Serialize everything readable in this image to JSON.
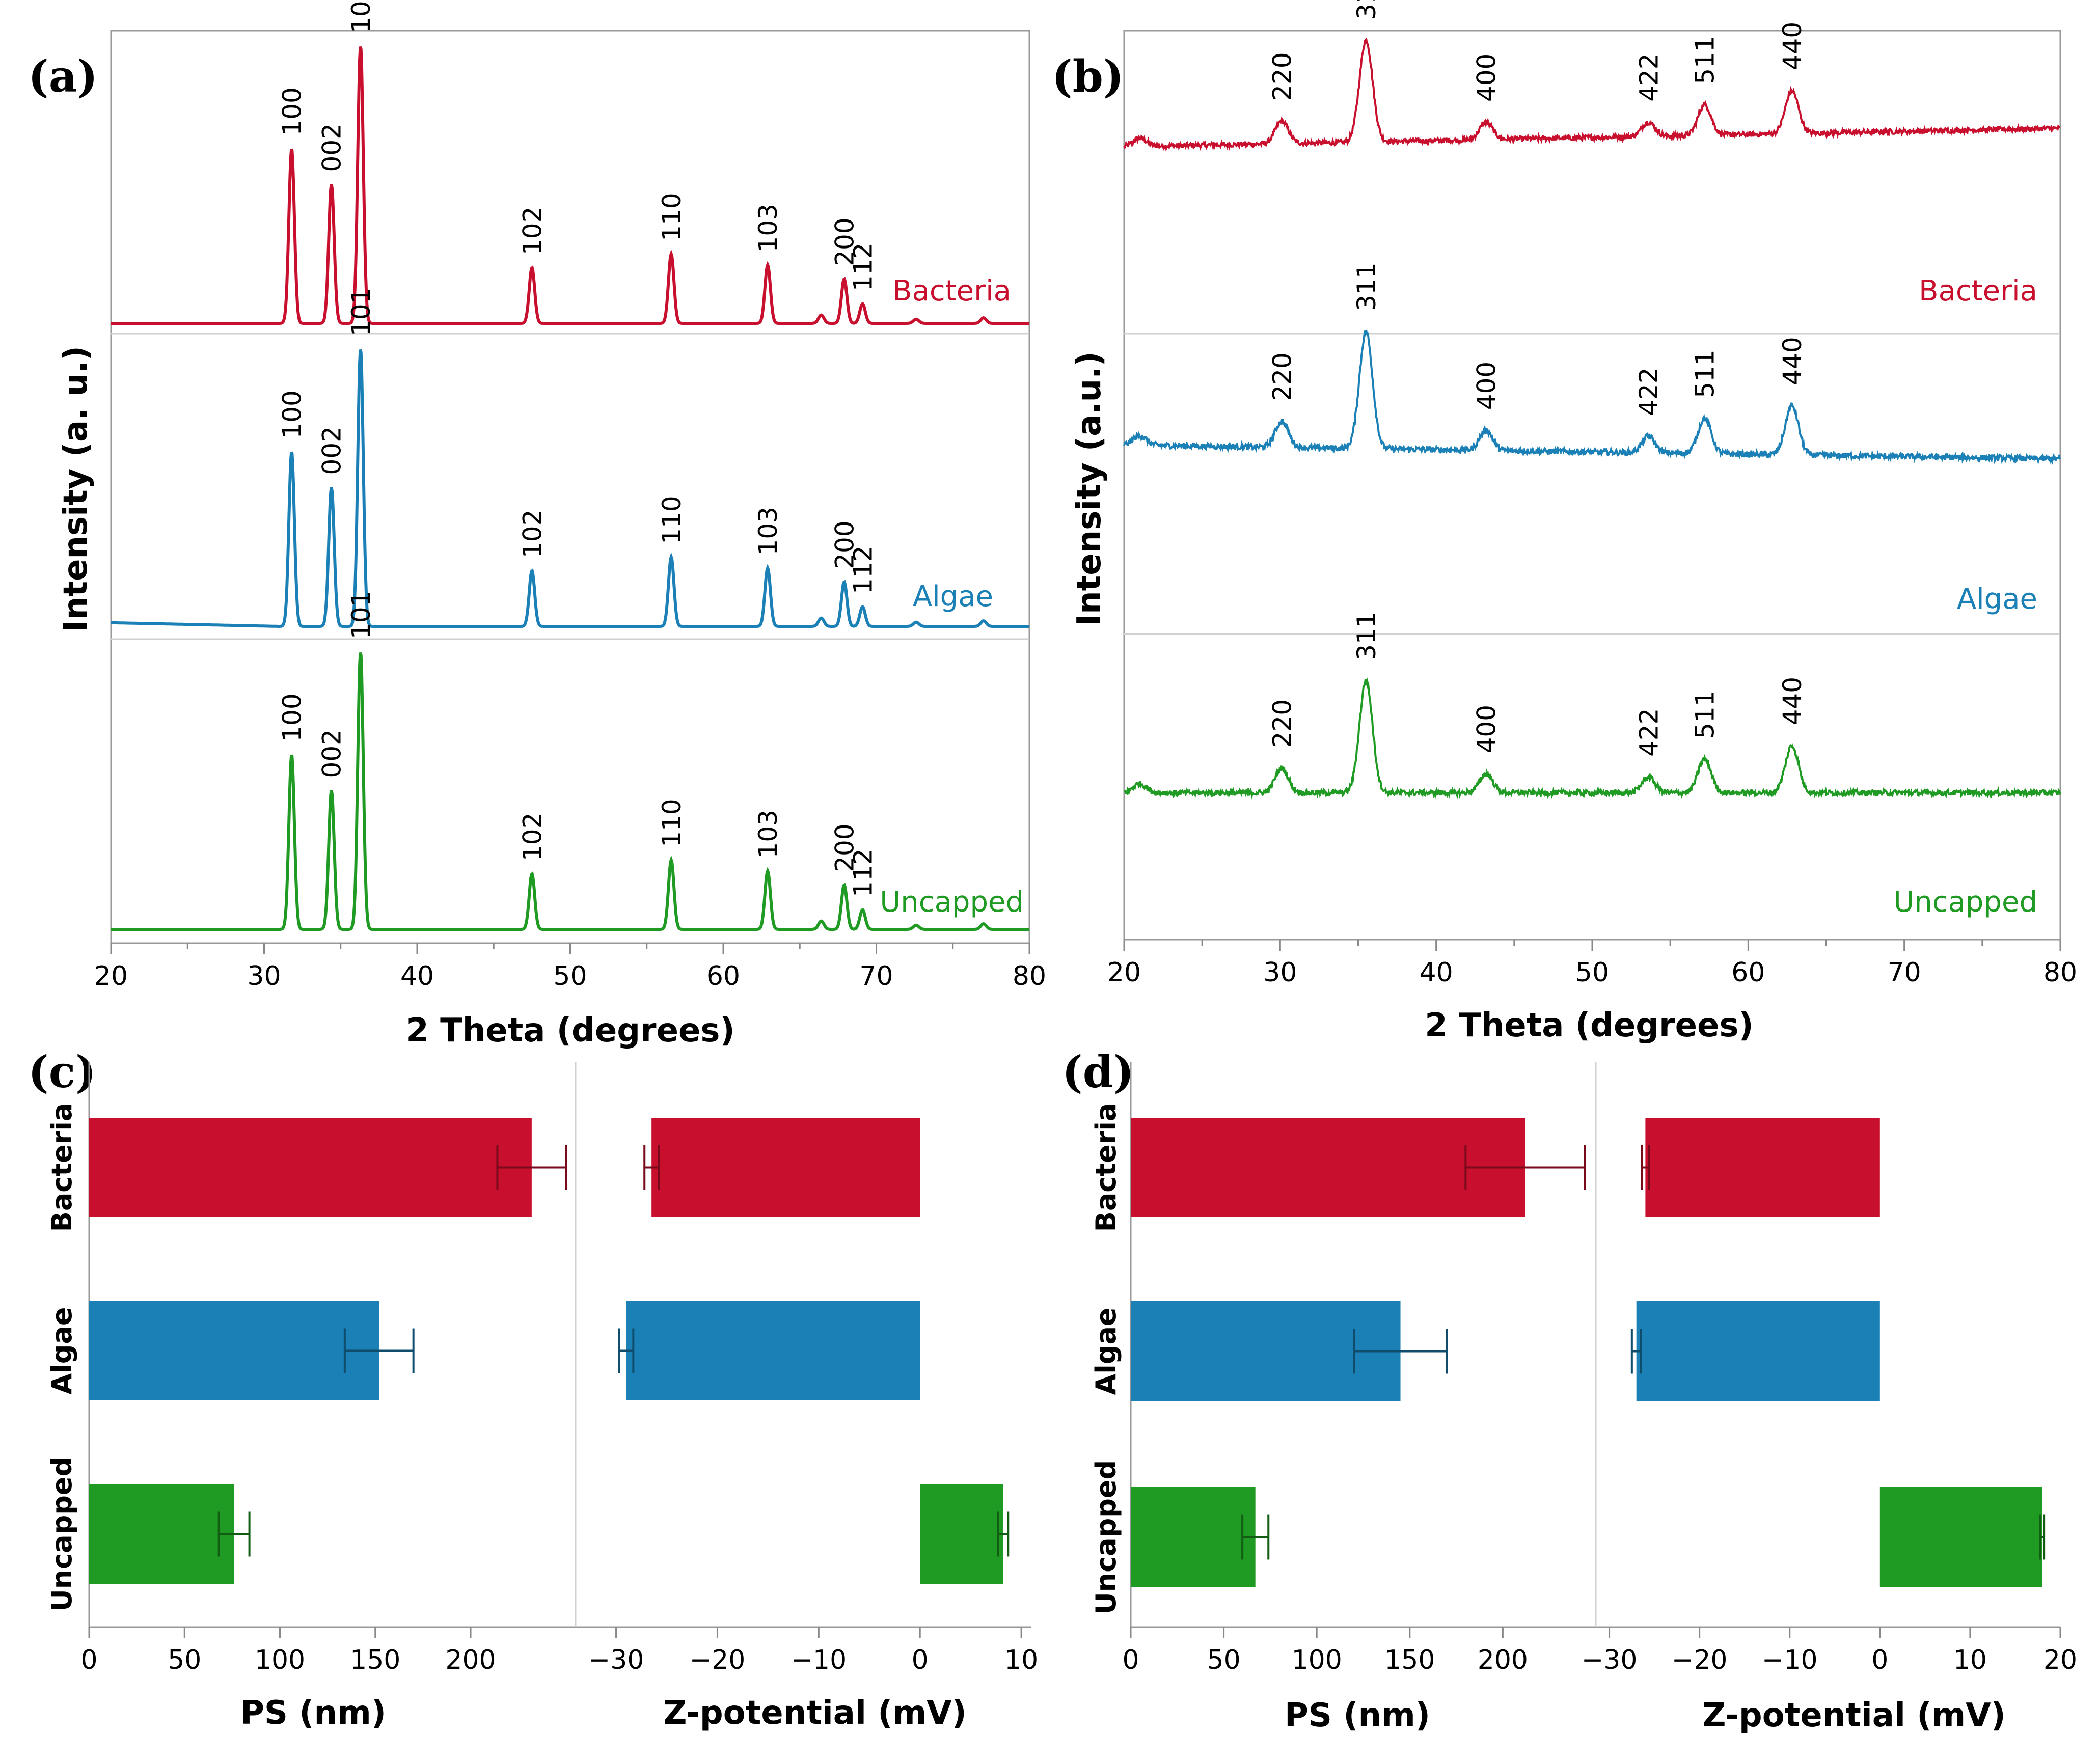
{
  "colors": {
    "bacteria": "#c8102e",
    "algae": "#1a80b6",
    "uncapped": "#1f9a22"
  },
  "chart_data": [
    {
      "panel": "(a)",
      "type": "line",
      "xlabel": "2 Theta (degrees)",
      "ylabel": "Intensity (a. u.)",
      "xlim": [
        20,
        80
      ],
      "xticks": [
        "20",
        "30",
        "40",
        "50",
        "60",
        "70",
        "80"
      ],
      "peaks": [
        {
          "x": 31.8,
          "label": "100",
          "h": 0.63
        },
        {
          "x": 34.4,
          "label": "002",
          "h": 0.5
        },
        {
          "x": 36.3,
          "label": "101",
          "h": 1.0
        },
        {
          "x": 47.5,
          "label": "102",
          "h": 0.2
        },
        {
          "x": 56.6,
          "label": "110",
          "h": 0.25
        },
        {
          "x": 62.9,
          "label": "103",
          "h": 0.21
        },
        {
          "x": 66.4,
          "label": "",
          "h": 0.03
        },
        {
          "x": 67.9,
          "label": "200",
          "h": 0.16
        },
        {
          "x": 69.1,
          "label": "112",
          "h": 0.07
        },
        {
          "x": 72.6,
          "label": "",
          "h": 0.015
        },
        {
          "x": 77.0,
          "label": "",
          "h": 0.02
        }
      ],
      "series": [
        {
          "name": "Bacteria",
          "color_key": "bacteria"
        },
        {
          "name": "Algae",
          "color_key": "algae"
        },
        {
          "name": "Uncapped",
          "color_key": "uncapped"
        }
      ]
    },
    {
      "panel": "(b)",
      "type": "line",
      "xlabel": "2 Theta (degrees)",
      "ylabel": "Intensity (a.u.)",
      "xlim": [
        20,
        80
      ],
      "xticks": [
        "20",
        "30",
        "40",
        "50",
        "60",
        "70",
        "80"
      ],
      "peaks": [
        {
          "x": 21.0,
          "label": "",
          "h": 0.08
        },
        {
          "x": 30.1,
          "label": "220",
          "h": 0.22
        },
        {
          "x": 35.5,
          "label": "311",
          "h": 1.0
        },
        {
          "x": 43.2,
          "label": "400",
          "h": 0.17
        },
        {
          "x": 53.6,
          "label": "422",
          "h": 0.14
        },
        {
          "x": 57.2,
          "label": "511",
          "h": 0.3
        },
        {
          "x": 62.8,
          "label": "440",
          "h": 0.42
        }
      ],
      "series": [
        {
          "name": "Bacteria",
          "color_key": "bacteria"
        },
        {
          "name": "Algae",
          "color_key": "algae"
        },
        {
          "name": "Uncapped",
          "color_key": "uncapped"
        }
      ]
    },
    {
      "panel": "(c)",
      "type": "bar",
      "categories": [
        "Bacteria",
        "Algae",
        "Uncapped"
      ],
      "ps": {
        "xlabel": "PS (nm)",
        "xlim": [
          0,
          255
        ],
        "xticks": [
          0,
          50,
          100,
          150,
          200
        ],
        "values": [
          232,
          152,
          76
        ],
        "errors": [
          18,
          18,
          8
        ]
      },
      "zeta": {
        "xlabel": "Z-potential (mV)",
        "xlim": [
          -34,
          11
        ],
        "xticks": [
          -30,
          -20,
          -10,
          0,
          10
        ],
        "tick_labels": [
          "−30",
          "−20",
          "−10",
          "0",
          "10"
        ],
        "values": [
          -26.5,
          -29,
          8.2
        ],
        "errors": [
          0.7,
          0.7,
          0.5
        ]
      }
    },
    {
      "panel": "(d)",
      "type": "bar",
      "categories": [
        "Bacteria",
        "Algae",
        "Uncapped"
      ],
      "ps": {
        "xlabel": "PS (nm)",
        "xlim": [
          0,
          250
        ],
        "xticks": [
          0,
          50,
          100,
          150,
          200
        ],
        "values": [
          212,
          145,
          67
        ],
        "errors": [
          32,
          25,
          7
        ]
      },
      "zeta": {
        "xlabel": "Z-potential (mV)",
        "xlim": [
          -31.5,
          20
        ],
        "xticks": [
          -30,
          -20,
          -10,
          0,
          10,
          20
        ],
        "tick_labels": [
          "−30",
          "−20",
          "−10",
          "0",
          "10",
          "20"
        ],
        "values": [
          -26,
          -27,
          18
        ],
        "errors": [
          0.4,
          0.5,
          0.2
        ]
      }
    }
  ]
}
